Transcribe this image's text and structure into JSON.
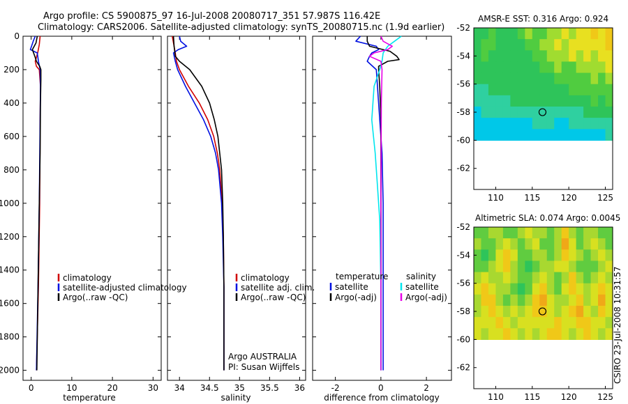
{
  "header": {
    "title_line1": "Argo profile: CS 5900875_97 16-Jul-2008 20080717_351 57.987S 116.42E",
    "title_line2": "Climatology: CARS2006. Satellite-adjusted climatology: synTS_20080715.nc (1.9d earlier)"
  },
  "side_stamp": "CSIRO 23-Jul-2008 10:31:57",
  "colors": {
    "climatology": "#d00000",
    "satellite": "#0010e0",
    "argo": "#000000",
    "sal_satellite": "#00e5ee",
    "sal_argo": "#e600e6",
    "map_background": "#2fbf4a",
    "float_marker": "#000000"
  },
  "chart_data": [
    {
      "id": "temperature",
      "type": "line",
      "xlabel": "temperature",
      "ylabel": "",
      "xlim": [
        -2,
        32
      ],
      "ylim": [
        2060,
        0
      ],
      "xticks": [
        0,
        10,
        20,
        30
      ],
      "yticks": [
        0,
        200,
        400,
        600,
        800,
        1000,
        1200,
        1400,
        1600,
        1800,
        2000
      ],
      "legend": {
        "placement": "bottom-right",
        "entries": [
          "climatology",
          "satellite-adjusted climatology",
          "Argo(..raw -QC)"
        ]
      },
      "series": [
        {
          "name": "climatology",
          "color": "#d00000",
          "y": [
            0,
            50,
            100,
            150,
            180,
            200,
            300,
            500,
            1000,
            1500,
            2000
          ],
          "x": [
            2.2,
            2.0,
            1.6,
            1.0,
            1.3,
            2.0,
            2.3,
            2.2,
            2.1,
            1.8,
            1.3
          ]
        },
        {
          "name": "satellite-adjusted climatology",
          "color": "#0010e0",
          "y": [
            0,
            30,
            60,
            80,
            100,
            150,
            200,
            300,
            500,
            1000,
            1500,
            2000
          ],
          "x": [
            1.0,
            0.5,
            0.1,
            -0.2,
            1.5,
            1.8,
            2.2,
            2.3,
            2.2,
            2.0,
            1.7,
            1.3
          ]
        },
        {
          "name": "Argo(..raw -QC)",
          "color": "#000000",
          "y": [
            0,
            40,
            80,
            120,
            150,
            180,
            200,
            260,
            400,
            700,
            1000,
            1500,
            2000
          ],
          "x": [
            1.5,
            1.2,
            0.3,
            0.9,
            1.3,
            2.1,
            2.4,
            2.4,
            2.3,
            2.2,
            2.0,
            1.7,
            1.4
          ]
        }
      ]
    },
    {
      "id": "salinity",
      "type": "line",
      "xlabel": "salinity",
      "ylabel": "",
      "xlim": [
        33.8,
        36.1
      ],
      "ylim": [
        2060,
        0
      ],
      "xticks": [
        34,
        34.5,
        35,
        35.5,
        36
      ],
      "legend": {
        "placement": "bottom-right",
        "entries": [
          "climatology",
          "satellite adj. clim.",
          "Argo(..raw -QC)"
        ]
      },
      "annotations": [
        "Argo AUSTRALIA",
        "PI: Susan Wijffels"
      ],
      "series": [
        {
          "name": "climatology",
          "color": "#d00000",
          "y": [
            0,
            100,
            150,
            200,
            300,
            400,
            500,
            600,
            700,
            800,
            1000,
            1200,
            1500,
            2000
          ],
          "x": [
            33.88,
            33.93,
            33.95,
            34.0,
            34.15,
            34.33,
            34.47,
            34.57,
            34.63,
            34.67,
            34.71,
            34.73,
            34.74,
            34.74
          ]
        },
        {
          "name": "satellite adj. clim.",
          "color": "#0010e0",
          "y": [
            0,
            30,
            60,
            80,
            100,
            150,
            200,
            300,
            400,
            500,
            600,
            700,
            800,
            1000,
            1200,
            1500,
            2000
          ],
          "x": [
            34.0,
            34.02,
            34.12,
            33.98,
            33.9,
            33.93,
            33.97,
            34.1,
            34.25,
            34.4,
            34.52,
            34.6,
            34.65,
            34.7,
            34.72,
            34.74,
            34.74
          ]
        },
        {
          "name": "Argo(..raw -QC)",
          "color": "#000000",
          "y": [
            0,
            60,
            120,
            150,
            200,
            300,
            400,
            500,
            600,
            700,
            800,
            1000,
            1200,
            1500,
            2000
          ],
          "x": [
            33.9,
            33.91,
            33.93,
            34.0,
            34.17,
            34.37,
            34.5,
            34.58,
            34.64,
            34.67,
            34.7,
            34.72,
            34.73,
            34.74,
            34.74
          ]
        }
      ]
    },
    {
      "id": "difference",
      "type": "line",
      "xlabel": "difference from climatology",
      "ylabel": "",
      "xlim": [
        -3,
        3.1
      ],
      "ylim": [
        2060,
        0
      ],
      "xticks": [
        -2,
        0,
        2
      ],
      "legend": {
        "placement": "bottom",
        "temperature_header": "temperature",
        "salinity_header": "salinity",
        "entries": [
          "satellite",
          "Argo(-adj)",
          "satellite",
          "Argo(-adj)"
        ]
      },
      "series": [
        {
          "name": "temperature satellite",
          "color": "#0010e0",
          "y": [
            0,
            30,
            60,
            80,
            100,
            120,
            150,
            200,
            400,
            700,
            1000,
            1500,
            2000
          ],
          "x": [
            -0.9,
            -1.1,
            -0.2,
            -0.1,
            -0.4,
            -0.5,
            -0.6,
            -0.2,
            -0.1,
            0.05,
            0.1,
            0.1,
            0.1
          ]
        },
        {
          "name": "temperature Argo(-adj)",
          "color": "#000000",
          "y": [
            0,
            30,
            60,
            90,
            120,
            140,
            150,
            180,
            200,
            300,
            500,
            1000,
            2000
          ],
          "x": [
            -0.6,
            -0.6,
            -0.5,
            0.4,
            0.7,
            0.8,
            0.3,
            -0.1,
            -0.1,
            -0.05,
            0.0,
            0.0,
            0.0
          ]
        },
        {
          "name": "salinity satellite",
          "color": "#00e5ee",
          "y": [
            0,
            30,
            60,
            80,
            100,
            150,
            200,
            300,
            500,
            700,
            900,
            1100,
            1500,
            2000
          ],
          "x": [
            0.9,
            0.6,
            0.3,
            0.2,
            0.1,
            0.05,
            -0.05,
            -0.3,
            -0.4,
            -0.25,
            -0.15,
            -0.05,
            0.0,
            0.0
          ]
        },
        {
          "name": "salinity Argo(-adj)",
          "color": "#e600e6",
          "y": [
            0,
            30,
            60,
            80,
            100,
            120,
            150,
            200,
            400,
            1000,
            2000
          ],
          "x": [
            0.0,
            0.1,
            0.5,
            0.3,
            -0.3,
            -0.5,
            0.0,
            0.05,
            0.02,
            0.0,
            0.0
          ]
        }
      ]
    },
    {
      "id": "sst_map",
      "type": "heatmap",
      "title": "AMSR-E SST: 0.316 Argo: 0.924",
      "xlim": [
        107,
        126
      ],
      "ylim": [
        -63.5,
        -52
      ],
      "xticks": [
        110,
        115,
        120,
        125
      ],
      "yticks": [
        -52,
        -54,
        -56,
        -58,
        -60,
        -62
      ],
      "data_extent_lat": [
        -60,
        -52
      ],
      "float_position": {
        "lon": 116.4,
        "lat": -58.0
      },
      "palette": [
        "#00c8e8",
        "#2fd0a0",
        "#2ec45a",
        "#50cc40",
        "#a0dc30",
        "#e8e020",
        "#f0c818"
      ],
      "grid": [
        [
          2,
          2,
          3,
          2,
          2,
          2,
          3,
          4,
          3,
          3,
          4,
          4,
          5,
          4,
          5,
          5,
          6,
          5,
          6
        ],
        [
          2,
          3,
          3,
          2,
          2,
          2,
          2,
          3,
          3,
          4,
          4,
          5,
          4,
          5,
          5,
          5,
          5,
          5,
          6
        ],
        [
          2,
          3,
          2,
          2,
          2,
          2,
          2,
          2,
          3,
          3,
          4,
          4,
          4,
          5,
          4,
          5,
          4,
          5,
          5
        ],
        [
          2,
          2,
          2,
          2,
          2,
          2,
          2,
          2,
          2,
          3,
          3,
          4,
          3,
          3,
          4,
          4,
          4,
          4,
          5
        ],
        [
          2,
          2,
          2,
          2,
          2,
          2,
          2,
          2,
          2,
          2,
          2,
          3,
          3,
          3,
          3,
          3,
          4,
          3,
          4
        ],
        [
          1,
          1,
          2,
          2,
          2,
          2,
          2,
          2,
          2,
          2,
          2,
          2,
          2,
          3,
          3,
          3,
          3,
          3,
          3
        ],
        [
          1,
          1,
          1,
          1,
          1,
          2,
          2,
          2,
          2,
          2,
          2,
          2,
          2,
          2,
          2,
          2,
          3,
          2,
          3
        ],
        [
          0,
          1,
          1,
          1,
          1,
          1,
          1,
          1,
          1,
          1,
          1,
          1,
          1,
          1,
          1,
          2,
          2,
          2,
          2
        ],
        [
          0,
          0,
          0,
          0,
          0,
          0,
          0,
          0,
          1,
          1,
          1,
          0,
          0,
          1,
          1,
          1,
          1,
          1,
          1
        ],
        [
          0,
          0,
          0,
          0,
          0,
          0,
          0,
          0,
          0,
          0,
          0,
          0,
          0,
          0,
          0,
          0,
          0,
          0,
          1
        ]
      ]
    },
    {
      "id": "sla_map",
      "type": "heatmap",
      "title": "Altimetric SLA: 0.074 Argo: 0.0045",
      "xlim": [
        107,
        126
      ],
      "ylim": [
        -63.5,
        -52
      ],
      "xticks": [
        110,
        115,
        120,
        125
      ],
      "yticks": [
        -52,
        -54,
        -56,
        -58,
        -60,
        -62
      ],
      "data_extent_lat": [
        -60,
        -52
      ],
      "float_position": {
        "lon": 116.4,
        "lat": -58.0
      },
      "palette": [
        "#2ec45a",
        "#60cc40",
        "#a8d830",
        "#d8e020",
        "#f0c818",
        "#f0a818"
      ],
      "grid": [
        [
          1,
          1,
          2,
          2,
          1,
          1,
          2,
          3,
          2,
          2,
          1,
          2,
          4,
          2,
          1,
          2,
          2,
          1,
          1
        ],
        [
          2,
          1,
          1,
          2,
          3,
          2,
          1,
          2,
          3,
          1,
          1,
          2,
          5,
          3,
          1,
          2,
          3,
          2,
          1
        ],
        [
          1,
          0,
          1,
          3,
          4,
          3,
          1,
          1,
          2,
          2,
          1,
          2,
          4,
          3,
          2,
          1,
          2,
          3,
          2
        ],
        [
          1,
          1,
          2,
          3,
          4,
          2,
          1,
          0,
          1,
          2,
          2,
          3,
          3,
          2,
          1,
          1,
          1,
          2,
          3
        ],
        [
          2,
          3,
          2,
          2,
          3,
          2,
          1,
          1,
          2,
          3,
          2,
          1,
          2,
          4,
          2,
          1,
          2,
          3,
          2
        ],
        [
          3,
          4,
          3,
          2,
          2,
          1,
          0,
          1,
          3,
          4,
          2,
          1,
          3,
          4,
          3,
          2,
          3,
          4,
          3
        ],
        [
          2,
          4,
          4,
          2,
          1,
          2,
          1,
          2,
          4,
          5,
          3,
          2,
          2,
          3,
          4,
          2,
          3,
          5,
          3
        ],
        [
          2,
          3,
          4,
          3,
          2,
          3,
          2,
          3,
          4,
          4,
          3,
          2,
          3,
          4,
          5,
          3,
          2,
          4,
          3
        ],
        [
          3,
          3,
          3,
          4,
          3,
          2,
          3,
          3,
          3,
          3,
          3,
          4,
          3,
          3,
          4,
          4,
          3,
          3,
          2
        ],
        [
          3,
          2,
          3,
          3,
          4,
          3,
          2,
          3,
          2,
          3,
          4,
          4,
          3,
          2,
          3,
          4,
          3,
          2,
          3
        ]
      ]
    }
  ],
  "legends": {
    "temperature": [
      "climatology",
      "satellite-adjusted climatology",
      "Argo(..raw -QC)"
    ],
    "salinity": [
      "climatology",
      "satellite adj. clim.",
      "Argo(..raw -QC)"
    ],
    "diff_headers": [
      "temperature",
      "salinity"
    ],
    "diff_temp": [
      "satellite",
      "Argo(-adj)"
    ],
    "diff_sal": [
      "satellite",
      "Argo(-adj)"
    ]
  }
}
